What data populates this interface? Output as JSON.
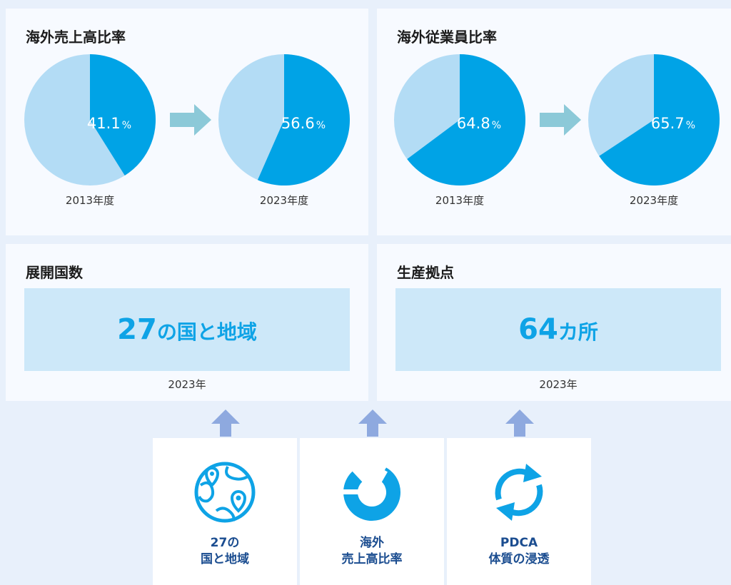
{
  "panels": {
    "sales_title": "海外売上高比率",
    "employee_title": "海外従業員比率",
    "countries_title": "展開国数",
    "bases_title": "生産拠点"
  },
  "chart_data": [
    {
      "type": "pie",
      "title": "海外売上高比率",
      "pies": [
        {
          "label": "2013年度",
          "value": 41.1,
          "value_text": "41.1",
          "unit": "%"
        },
        {
          "label": "2023年度",
          "value": 56.6,
          "value_text": "56.6",
          "unit": "%"
        }
      ],
      "colors": {
        "primary": "#00a3e6",
        "remainder": "#b3dcf5"
      }
    },
    {
      "type": "pie",
      "title": "海外従業員比率",
      "pies": [
        {
          "label": "2013年度",
          "value": 64.8,
          "value_text": "64.8",
          "unit": "%"
        },
        {
          "label": "2023年度",
          "value": 65.7,
          "value_text": "65.7",
          "unit": "%"
        }
      ],
      "colors": {
        "primary": "#00a3e6",
        "remainder": "#b3dcf5"
      }
    }
  ],
  "stats": {
    "countries": {
      "number": "27",
      "suffix": "の国と地域",
      "year": "2023年"
    },
    "bases": {
      "number": "64",
      "suffix": "カ所",
      "year": "2023年"
    }
  },
  "icons": [
    {
      "name": "globe-pin-icon",
      "line1": "27の",
      "line2": "国と地域"
    },
    {
      "name": "ring-chart-icon",
      "line1": "海外",
      "line2": "売上高比率"
    },
    {
      "name": "cycle-arrows-icon",
      "line1": "PDCA",
      "line2": "体質の浸透"
    }
  ],
  "colors": {
    "accent": "#00a3e6",
    "light": "#b3dcf5",
    "arrow": "#8cc9d8",
    "up_arrow": "#8ea9df",
    "icon_text": "#1b4d90"
  }
}
